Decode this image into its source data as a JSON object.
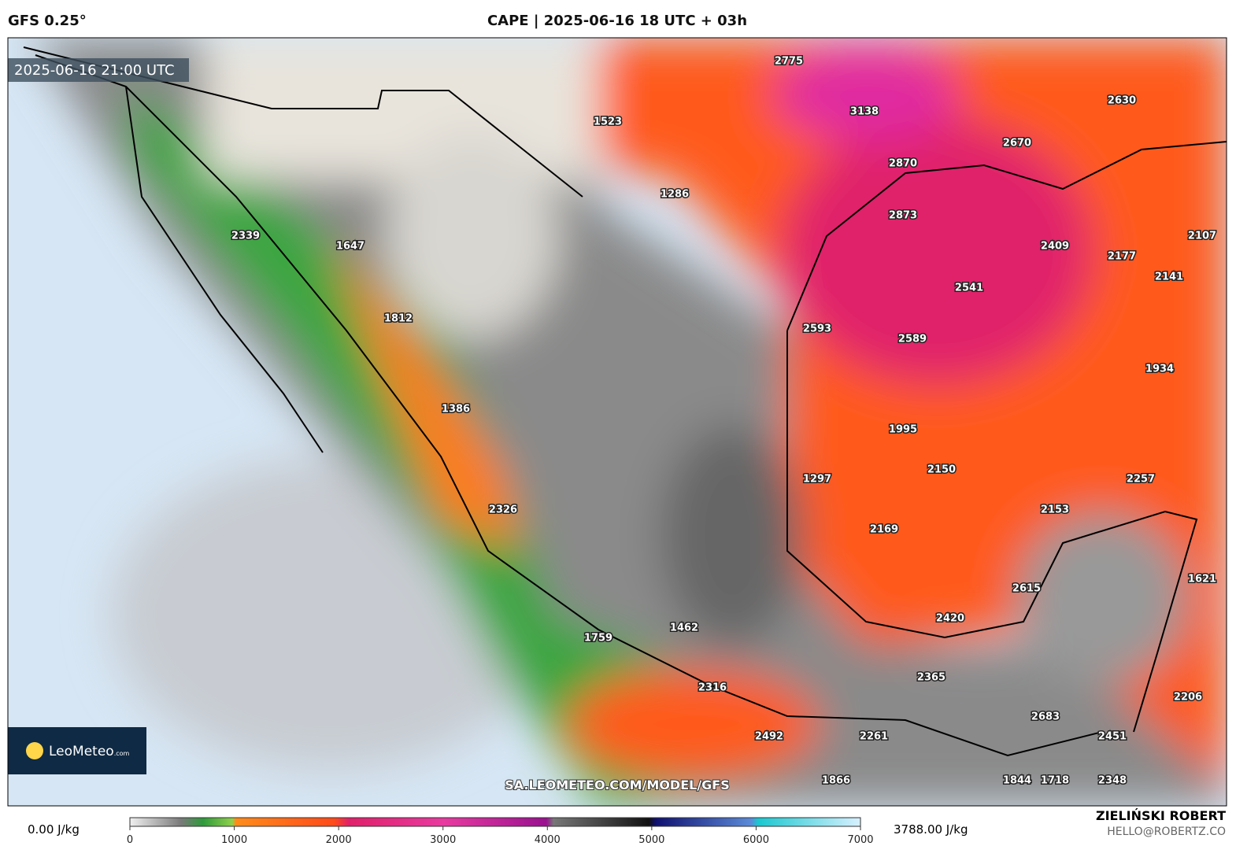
{
  "header": {
    "model": "GFS 0.25°",
    "title": "CAPE | 2025-06-16 18 UTC + 03h"
  },
  "map": {
    "timestamp": "2025-06-16 21:00 UTC",
    "watermark": "SA.LEOMETEO.COM/MODEL/GFS",
    "logo": "LeoMeteo",
    "logo_suffix": ".com",
    "values": [
      2775,
      3138,
      1523,
      2630,
      2670,
      2870,
      1286,
      2873,
      2339,
      1647,
      2409,
      2177,
      2107,
      2141,
      2541,
      1812,
      2593,
      2589,
      1934,
      1386,
      1995,
      2150,
      1297,
      2257,
      2153,
      2326,
      2169,
      2615,
      1621,
      2420,
      1462,
      1759,
      2365,
      2316,
      2206,
      2683,
      2451,
      2492,
      2261,
      1866,
      1844,
      1718,
      2348
    ]
  },
  "colorbar": {
    "min_label": "0.00 J/kg",
    "max_label": "3788.00 J/kg",
    "ticks": [
      0,
      1000,
      2000,
      3000,
      4000,
      5000,
      6000,
      7000
    ],
    "range": [
      0,
      7000
    ]
  },
  "credit": {
    "name": "ZIELIŃSKI ROBERT",
    "email": "HELLO@ROBERTZ.CO"
  }
}
